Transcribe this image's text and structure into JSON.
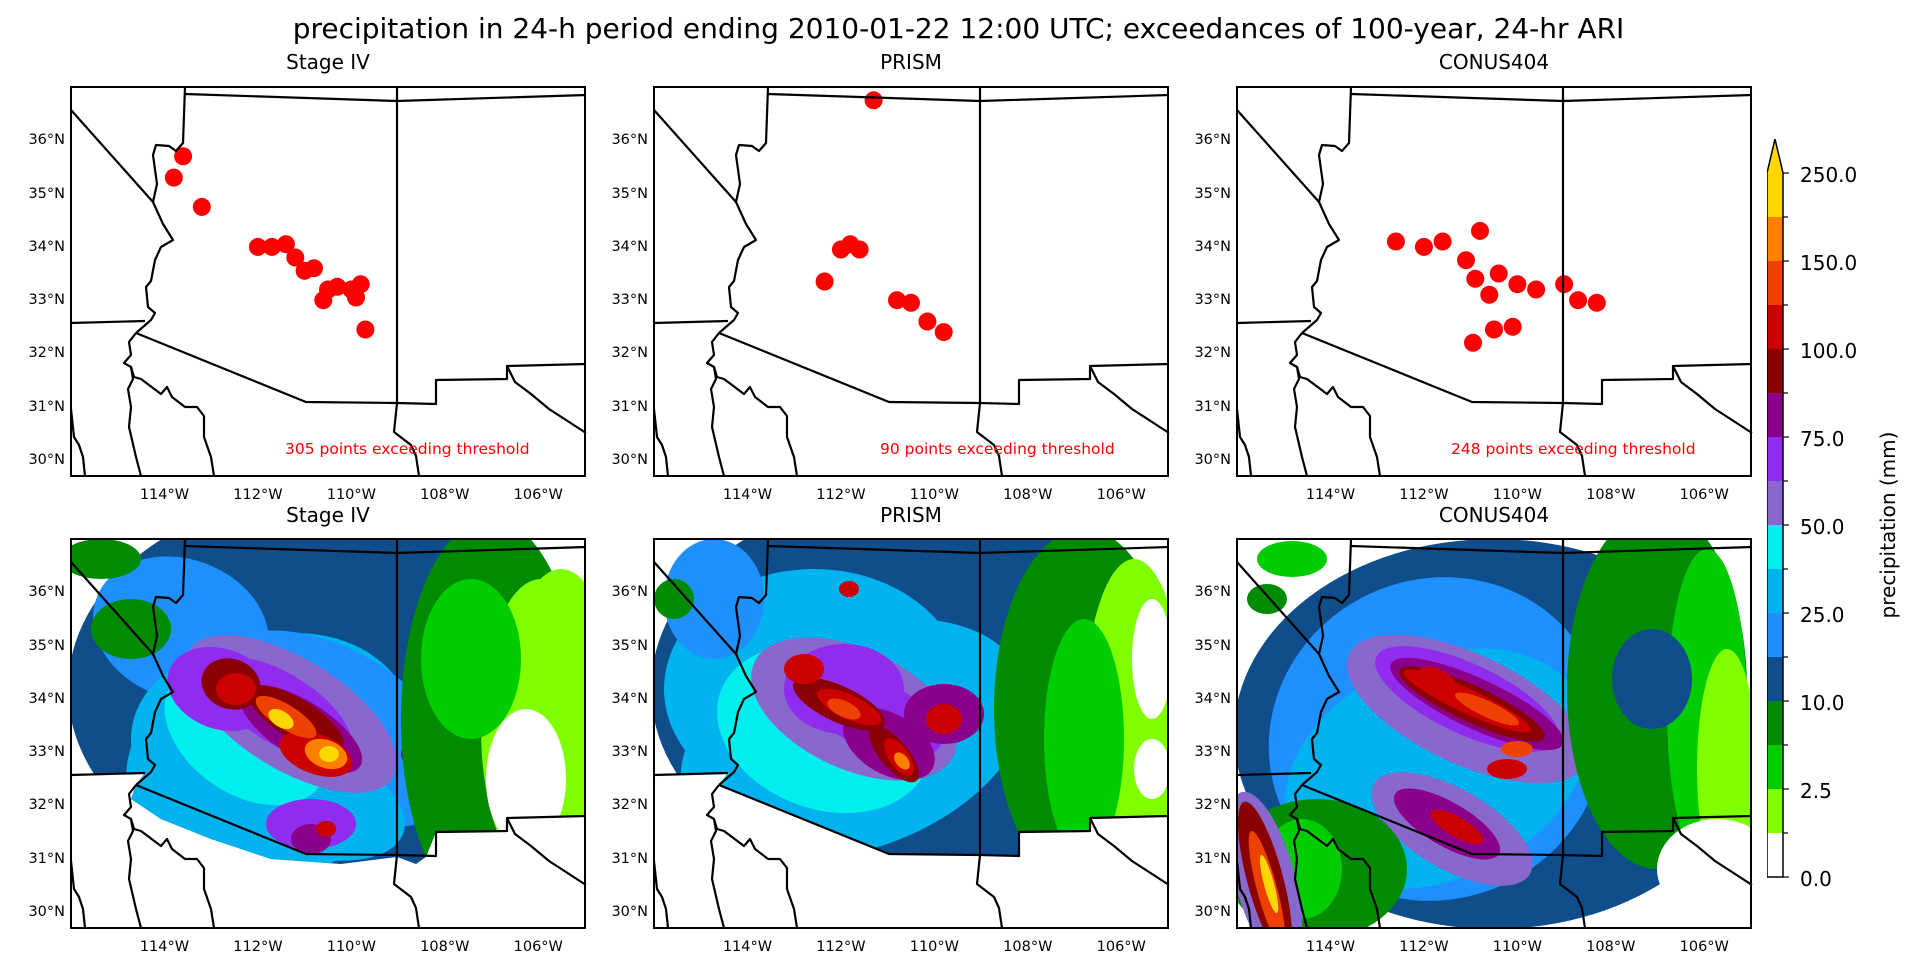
{
  "figure": {
    "title": "precipitation in 24-h period ending 2010-01-22 12:00 UTC; exceedances of 100-year, 24-hr ARI",
    "colorbar": {
      "label": "precipitation (mm)",
      "extend": "max",
      "tick_labels": [
        "250.0",
        "150.0",
        "100.0",
        "75.0",
        "50.0",
        "25.0",
        "10.0",
        "2.5",
        "0.0"
      ],
      "bins_bottom_to_top": [
        {
          "color": "#ffffff"
        },
        {
          "color": "#7fff00"
        },
        {
          "color": "#00cd00"
        },
        {
          "color": "#008b00"
        },
        {
          "color": "#104e8b"
        },
        {
          "color": "#1e90ff"
        },
        {
          "color": "#00b2ee"
        },
        {
          "color": "#00eeee"
        },
        {
          "color": "#8968cd"
        },
        {
          "color": "#912cee"
        },
        {
          "color": "#8b008b"
        },
        {
          "color": "#8b0000"
        },
        {
          "color": "#cd0000"
        },
        {
          "color": "#ee4000"
        },
        {
          "color": "#ff7f00"
        },
        {
          "color": "#ffd700"
        }
      ]
    },
    "axes": {
      "lat_ticks": [
        "36°N",
        "35°N",
        "34°N",
        "33°N",
        "32°N",
        "31°N",
        "30°N"
      ],
      "lon_ticks": [
        "114°W",
        "112°W",
        "110°W",
        "108°W",
        "106°W"
      ],
      "extent": {
        "lon_min": -116,
        "lon_max": -105,
        "lat_min": 29.7,
        "lat_max": 37
      }
    },
    "top_row": [
      {
        "title": "Stage IV",
        "count_text": "305 points exceeding threshold"
      },
      {
        "title": "PRISM",
        "count_text": "90 points exceeding threshold"
      },
      {
        "title": "CONUS404",
        "count_text": "248 points exceeding threshold"
      }
    ],
    "bottom_row": [
      {
        "title": "Stage IV"
      },
      {
        "title": "PRISM"
      },
      {
        "title": "CONUS404"
      }
    ],
    "exceedance_color": "#ff0000",
    "border_color": "#000000"
  },
  "chart_data": [
    {
      "type": "scatter",
      "title": "Stage IV",
      "subtitle_main": "precipitation in 24-h period ending 2010-01-22 12:00 UTC; exceedances of 100-year, 24-hr ARI",
      "annotation": "305 points exceeding threshold",
      "count": 305,
      "xlabel": "",
      "ylabel": "",
      "xlim": [
        -116,
        -105
      ],
      "ylim": [
        29.7,
        37
      ],
      "points_lon_lat": [
        [
          -113.6,
          35.7
        ],
        [
          -113.8,
          35.3
        ],
        [
          -113.2,
          34.75
        ],
        [
          -112.0,
          34.0
        ],
        [
          -111.7,
          34.0
        ],
        [
          -111.4,
          34.05
        ],
        [
          -111.2,
          33.8
        ],
        [
          -111.0,
          33.55
        ],
        [
          -110.8,
          33.6
        ],
        [
          -110.5,
          33.2
        ],
        [
          -110.6,
          33.0
        ],
        [
          -110.3,
          33.25
        ],
        [
          -110.0,
          33.2
        ],
        [
          -109.8,
          33.3
        ],
        [
          -109.9,
          33.05
        ],
        [
          -109.7,
          32.45
        ]
      ]
    },
    {
      "type": "scatter",
      "title": "PRISM",
      "annotation": "90 points exceeding threshold",
      "count": 90,
      "xlim": [
        -116,
        -105
      ],
      "ylim": [
        29.7,
        37
      ],
      "points_lon_lat": [
        [
          -111.3,
          36.75
        ],
        [
          -112.0,
          33.95
        ],
        [
          -111.8,
          34.05
        ],
        [
          -111.6,
          33.95
        ],
        [
          -112.35,
          33.35
        ],
        [
          -110.8,
          33.0
        ],
        [
          -110.5,
          32.95
        ],
        [
          -110.15,
          32.6
        ],
        [
          -109.8,
          32.4
        ]
      ]
    },
    {
      "type": "scatter",
      "title": "CONUS404",
      "annotation": "248 points exceeding threshold",
      "count": 248,
      "xlim": [
        -116,
        -105
      ],
      "ylim": [
        29.7,
        37
      ],
      "points_lon_lat": [
        [
          -112.6,
          34.1
        ],
        [
          -112.0,
          34.0
        ],
        [
          -111.6,
          34.1
        ],
        [
          -111.1,
          33.75
        ],
        [
          -110.8,
          34.3
        ],
        [
          -110.9,
          33.4
        ],
        [
          -110.6,
          33.1
        ],
        [
          -110.4,
          33.5
        ],
        [
          -110.0,
          33.3
        ],
        [
          -109.6,
          33.2
        ],
        [
          -109.0,
          33.3
        ],
        [
          -108.7,
          33.0
        ],
        [
          -108.3,
          32.95
        ],
        [
          -110.5,
          32.45
        ],
        [
          -110.1,
          32.5
        ],
        [
          -110.95,
          32.2
        ]
      ]
    },
    {
      "type": "heatmap",
      "title": "Stage IV",
      "zlabel": "precipitation (mm)",
      "levels": [
        0,
        1,
        2.5,
        5,
        10,
        15,
        25,
        35,
        50,
        60,
        75,
        88,
        100,
        125,
        150,
        200,
        250
      ],
      "xlim": [
        -116,
        -105
      ],
      "ylim": [
        29.7,
        37
      ],
      "description": "Max 150-250 mm along Mogollon Rim ~(-111.5,34) to (-110,33); 10-50 mm across most of Arizona; <10 mm in eastern New Mexico; no data south of border"
    },
    {
      "type": "heatmap",
      "title": "PRISM",
      "zlabel": "precipitation (mm)",
      "levels": [
        0,
        1,
        2.5,
        5,
        10,
        15,
        25,
        35,
        50,
        60,
        75,
        88,
        100,
        125,
        150,
        200,
        250
      ],
      "xlim": [
        -116,
        -105
      ],
      "ylim": [
        29.7,
        37
      ],
      "description": "Max 100-200 mm centered ~(-111.5,34) to (-110.5,32.8); no data outside US"
    },
    {
      "type": "heatmap",
      "title": "CONUS404",
      "zlabel": "precipitation (mm)",
      "levels": [
        0,
        1,
        2.5,
        5,
        10,
        15,
        25,
        35,
        50,
        60,
        75,
        88,
        100,
        125,
        150,
        200,
        250
      ],
      "xlim": [
        -116,
        -105
      ],
      "ylim": [
        29.7,
        37
      ],
      "description": "Max 100-250 mm along Mogollon Rim and Baja California ranges ~(-115.5,31.5); covers Mexico"
    }
  ]
}
